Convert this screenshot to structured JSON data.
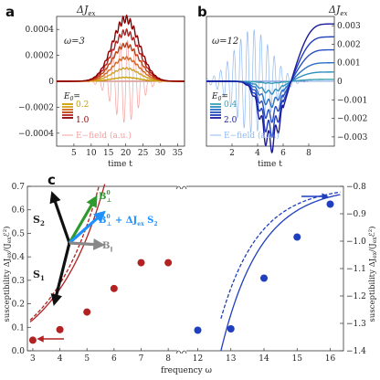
{
  "figure": {
    "panel_a": {
      "letter": "a",
      "ylabel": "ΔJ",
      "ylabel_sub": "ex",
      "omega_label": "ω=3",
      "legend_title": "E",
      "legend_title_sub": "0",
      "legend_title_suffix": "=",
      "legend_values": [
        "0.2",
        "1.0"
      ],
      "efield_label": "E−field (a.u.)",
      "xlabel": "time t"
    },
    "panel_b": {
      "letter": "b",
      "ylabel": "ΔJ",
      "ylabel_sub": "ex",
      "omega_label": "ω=12",
      "legend_title": "E",
      "legend_title_sub": "0",
      "legend_title_suffix": "=",
      "legend_values": [
        "0.4",
        "2.0"
      ],
      "efield_label": "E−field (a.u.)",
      "xlabel": "time t"
    },
    "panel_c": {
      "letter": "c",
      "xlabel": "frequency ω",
      "ylabel_left": "susceptibility ΔJ",
      "ylabel_left_tail": "/(J",
      "ylabel_left_end": "ℰ²)",
      "ylabel_right": "susceptibility ΔJ",
      "ylabel_right_tail": "/(J",
      "ylabel_right_end": "ℰ²)",
      "ylabel_sub_ex": "ex",
      "ylabel_sub_ex2": "ex",
      "inset": {
        "s2": "S",
        "s2_sub": "2",
        "s1": "S",
        "s1_sub": "1",
        "bperp": "B",
        "bperp_sub": "⊥",
        "bperp_sup": "0",
        "bsum": "B",
        "bsum_sub": "⊥",
        "bsum_sup": "0",
        "bsum_mid": " + ΔJ",
        "bsum_mid_sub": "ex",
        "bsum_tail": " S",
        "bsum_tail_sub": "2",
        "bpar": "B",
        "bpar_sub": "∥"
      }
    },
    "colors": {
      "red_dark": "#8b0000",
      "red": "#b22222",
      "orange": "#d2691e",
      "gold": "#c8a000",
      "red_light": "#f4a0a0",
      "blue_dark": "#1a1a9a",
      "blue": "#1f3fbf",
      "cyan": "#2f8fbf",
      "teal": "#3aa0a0",
      "blue_light": "#8fb8ef",
      "green": "#2e9a2e",
      "cyan_arrow": "#1e90ff",
      "gray": "#888888"
    }
  },
  "chart_data": [
    {
      "panel": "a",
      "type": "line",
      "xlabel": "time t",
      "ylabel": "ΔJex",
      "xlim": [
        0,
        37
      ],
      "ylim": [
        -0.0005,
        0.0005
      ],
      "xticks": [
        5,
        10,
        15,
        20,
        25,
        30,
        35
      ],
      "yticks": [
        -0.0004,
        -0.0002,
        0,
        0.0002,
        0.0004
      ],
      "ytick_labels": [
        "−0.0004",
        "−0.0002",
        "0",
        "0.0002",
        "0.0004"
      ],
      "omega": 3,
      "pulse_center": 20,
      "pulse_width": 5.5,
      "series": [
        {
          "name": "0.2",
          "peak": 3e-05
        },
        {
          "peak": 0.0001
        },
        {
          "peak": 0.00018
        },
        {
          "peak": 0.00028
        },
        {
          "peak": 0.00038
        },
        {
          "name": "1.0",
          "peak": 0.00048
        }
      ],
      "efield_amplitude": 0.00032
    },
    {
      "panel": "b",
      "type": "line",
      "xlabel": "time t",
      "ylabel": "ΔJex",
      "xlim": [
        0,
        10
      ],
      "ylim": [
        -0.0035,
        0.0035
      ],
      "xticks": [
        2,
        4,
        6,
        8
      ],
      "yticks": [
        -0.003,
        -0.002,
        -0.001,
        0,
        0.001,
        0.002,
        0.003
      ],
      "ytick_labels": [
        "−0.003",
        "−0.002",
        "−0.001",
        "0",
        "0.001",
        "0.002",
        "0.003"
      ],
      "omega": 12,
      "zero_cross": 6,
      "series": [
        {
          "name": "0.4",
          "min": -0.0001,
          "max": 0.0001
        },
        {
          "min": -0.0006,
          "max": 0.0005
        },
        {
          "min": -0.0012,
          "max": 0.001
        },
        {
          "min": -0.0019,
          "max": 0.0017
        },
        {
          "min": -0.0026,
          "max": 0.0024
        },
        {
          "name": "2.0",
          "min": -0.0033,
          "max": 0.0031
        }
      ],
      "efield_amplitude": 0.0028
    },
    {
      "panel": "c",
      "type": "scatter",
      "xlabel": "frequency ω",
      "ylabel_left": "susceptibility ΔJex/(Jex ℰ²)",
      "ylabel_right": "susceptibility ΔJex/(Jex ℰ²)",
      "xticks_left": [
        3,
        4,
        5,
        6,
        7,
        8
      ],
      "xticks_right": [
        12,
        13,
        14,
        15,
        16
      ],
      "ylim_left": [
        0,
        0.7
      ],
      "yticks_left": [
        0,
        0.1,
        0.2,
        0.3,
        0.4,
        0.5,
        0.6,
        0.7
      ],
      "ylim_right": [
        -1.4,
        -0.8
      ],
      "yticks_right": [
        -1.4,
        -1.3,
        -1.2,
        -1.1,
        -1.0,
        -0.9,
        -0.8
      ],
      "ytick_labels_right": [
        "−1.4",
        "−1.3",
        "−1.2",
        "−1.1",
        "−1.0",
        "−0.9",
        "−0.8"
      ],
      "red_points": {
        "x": [
          3,
          4,
          5,
          6,
          7,
          8
        ],
        "y": [
          0.045,
          0.09,
          0.165,
          0.265,
          0.375,
          0.375
        ]
      },
      "blue_points": {
        "x": [
          12,
          13,
          14,
          15,
          16
        ],
        "y": [
          -1.325,
          -1.32,
          -1.135,
          -0.985,
          -0.865
        ]
      }
    }
  ]
}
